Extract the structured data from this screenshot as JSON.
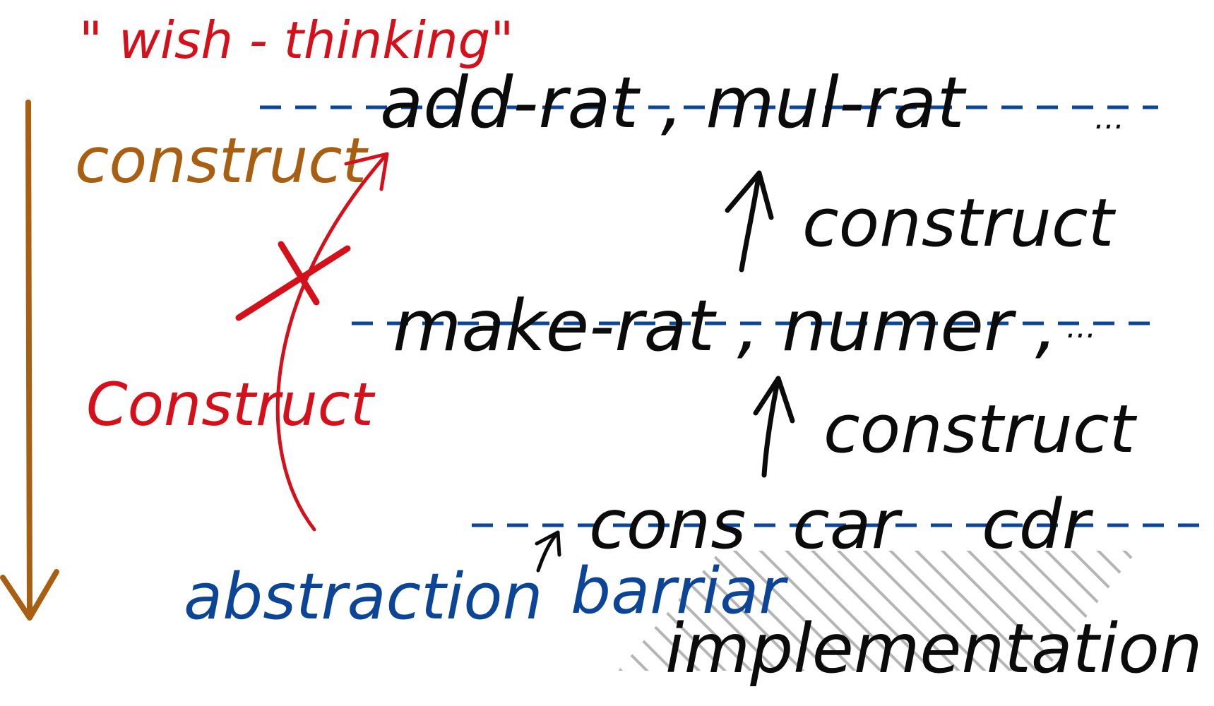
{
  "colors": {
    "red": "#d4101a",
    "brown": "#a85f12",
    "blue": "#0c4596",
    "black": "#0b0b0b",
    "hatch": "#8a8a8a"
  },
  "labels": {
    "wish_thinking": "\" wish - thinking\"",
    "top_layer": "add-rat , mul-rat",
    "top_ellipsis": "...",
    "middle_layer": "make-rat , numer ,",
    "middle_ellipsis": "...",
    "bottom_cons": "cons",
    "bottom_car": "car",
    "bottom_cdr": "cdr",
    "construct_brown": "construct",
    "construct_red": "Construct",
    "construct_upper": "construct",
    "construct_lower": "construct",
    "abstraction_barrier": "abstraction",
    "barrier_word": "barriar",
    "implementation": "implementation"
  },
  "icons": {
    "rejected_mark": "x-cross-icon",
    "down_arrow": "arrow-down-icon",
    "up_arrow": "arrow-up-icon",
    "curved_arrow": "curved-arrow-icon",
    "hatching": "hatch-shading"
  }
}
